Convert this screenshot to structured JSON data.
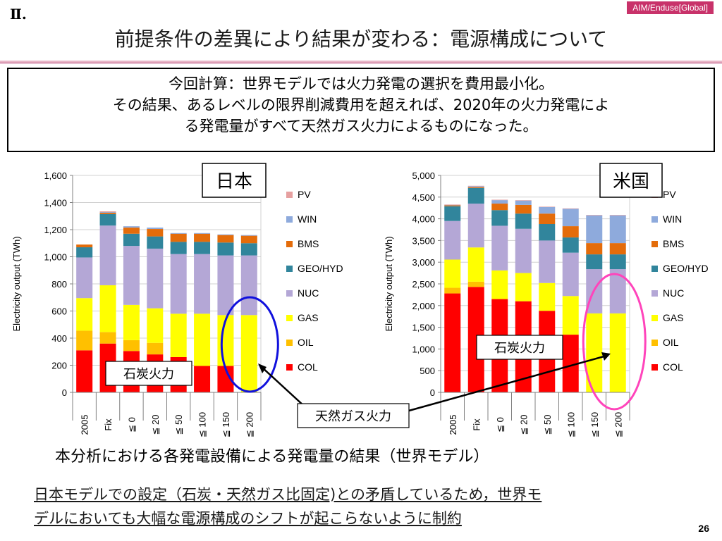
{
  "header": {
    "tag": "AIM/Enduse[Global]",
    "roman": "Ⅱ.",
    "title": "前提条件の差異により結果が変わる：電源構成について"
  },
  "summary": {
    "line1": "今回計算：世界モデルでは火力発電の選択を費用最小化。",
    "line2": "その結果、あるレベルの限界削減費用を超えれば、2020年の火力発電によ",
    "line3": "る発電量がすべて天然ガス火力によるものになった。"
  },
  "labels": {
    "coal_jp": "石炭火力",
    "coal_us": "石炭火力",
    "natgas": "天然ガス火力"
  },
  "caption": "本分析における各発電設備による発電量の結果（世界モデル）",
  "note": {
    "line1": "日本モデルでの設定（石炭・天然ガス比固定)との矛盾しているため，世界モ",
    "line2": "デルにおいても大幅な電源構成のシフトが起こらないように制約"
  },
  "page_number": "26",
  "colors": {
    "COL": "#ff0000",
    "OIL": "#ffc000",
    "GAS": "#ffff00",
    "NUC": "#b4a7d6",
    "GEO/HYD": "#31859c",
    "BMS": "#e46c0a",
    "WIN": "#8eaadc",
    "PV": "#e6a0a0",
    "circle_jp": "#1010dd",
    "circle_us": "#ff44bb"
  },
  "chart_data": [
    {
      "type": "bar",
      "stacked": true,
      "box_label": "日本",
      "ylabel": "Electricity output (TWh)",
      "ylim": [
        0,
        1600
      ],
      "yticks": [
        "0",
        "200",
        "400",
        "600",
        "800",
        "1,000",
        "1,200",
        "1,400",
        "1,600"
      ],
      "categories": [
        "2005",
        "Fix",
        "≦ 0",
        "≦ 20",
        "≦ 50",
        "≦ 100",
        "≦ 150",
        "≦ 200"
      ],
      "series": [
        {
          "name": "COL",
          "values": [
            310,
            360,
            305,
            280,
            260,
            195,
            195,
            0
          ]
        },
        {
          "name": "OIL",
          "values": [
            145,
            85,
            80,
            85,
            0,
            0,
            0,
            0
          ]
        },
        {
          "name": "GAS",
          "values": [
            240,
            345,
            260,
            255,
            320,
            385,
            375,
            570
          ]
        },
        {
          "name": "NUC",
          "values": [
            300,
            440,
            435,
            440,
            440,
            440,
            440,
            440
          ]
        },
        {
          "name": "GEO/HYD",
          "values": [
            75,
            85,
            90,
            90,
            90,
            90,
            95,
            90
          ]
        },
        {
          "name": "BMS",
          "values": [
            20,
            10,
            45,
            55,
            60,
            60,
            55,
            55
          ]
        },
        {
          "name": "WIN",
          "values": [
            0,
            5,
            10,
            10,
            5,
            5,
            5,
            5
          ]
        },
        {
          "name": "PV",
          "values": [
            0,
            5,
            0,
            0,
            0,
            0,
            0,
            0
          ]
        }
      ],
      "legend": [
        "PV",
        "WIN",
        "BMS",
        "GEO/HYD",
        "NUC",
        "GAS",
        "OIL",
        "COL"
      ]
    },
    {
      "type": "bar",
      "stacked": true,
      "box_label": "米国",
      "ylabel": "Electricity output (TWh)",
      "ylim": [
        0,
        5000
      ],
      "yticks": [
        "0",
        "500",
        "1,000",
        "1,500",
        "2,000",
        "2,500",
        "3,000",
        "3,500",
        "4,000",
        "4,500",
        "5,000"
      ],
      "categories": [
        "2005",
        "Fix",
        "≦ 0",
        "≦ 20",
        "≦ 50",
        "≦ 100",
        "≦ 150",
        "≦ 200"
      ],
      "series": [
        {
          "name": "COL",
          "values": [
            2280,
            2430,
            2150,
            2100,
            1880,
            1330,
            0,
            0
          ]
        },
        {
          "name": "OIL",
          "values": [
            130,
            120,
            0,
            0,
            0,
            0,
            0,
            0
          ]
        },
        {
          "name": "GAS",
          "values": [
            650,
            790,
            660,
            650,
            640,
            890,
            1820,
            1820
          ]
        },
        {
          "name": "NUC",
          "values": [
            890,
            1010,
            1030,
            1020,
            980,
            1000,
            1020,
            1020
          ]
        },
        {
          "name": "GEO/HYD",
          "values": [
            340,
            360,
            360,
            350,
            380,
            350,
            340,
            340
          ]
        },
        {
          "name": "BMS",
          "values": [
            20,
            20,
            150,
            200,
            240,
            260,
            260,
            260
          ]
        },
        {
          "name": "WIN",
          "values": [
            10,
            20,
            80,
            100,
            150,
            400,
            640,
            640
          ]
        },
        {
          "name": "PV",
          "values": [
            10,
            10,
            10,
            10,
            10,
            10,
            10,
            10
          ]
        }
      ],
      "legend": [
        "PV",
        "WIN",
        "BMS",
        "GEO/HYD",
        "NUC",
        "GAS",
        "OIL",
        "COL"
      ]
    }
  ]
}
